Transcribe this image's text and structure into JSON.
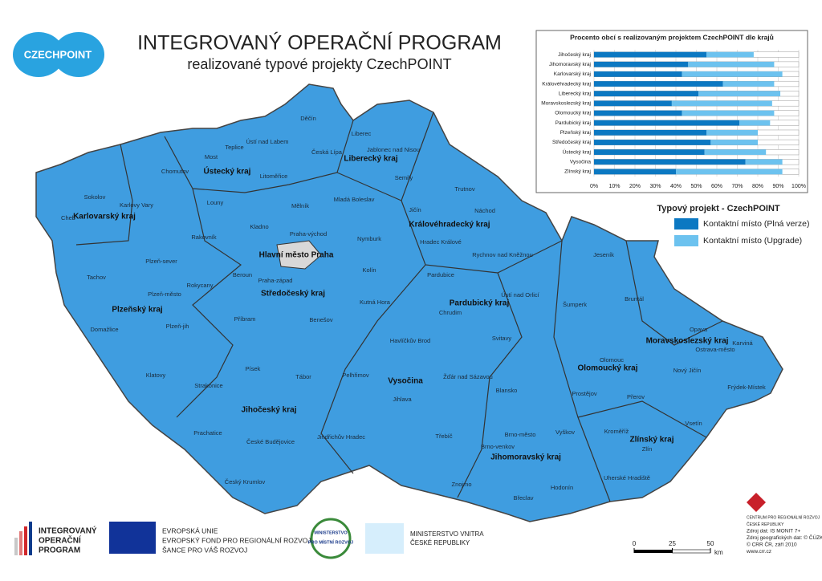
{
  "header": {
    "logo": "CZECHPOINT",
    "title": "INTEGROVANÝ OPERAČNÍ PROGRAM",
    "subtitle": "realizované typové projekty CzechPOINT"
  },
  "chart_data": {
    "type": "bar",
    "orientation": "horizontal",
    "stacked": true,
    "title": "Procento obcí s realizovaným projektem CzechPOINT dle krajů",
    "categories": [
      "Jihočeský kraj",
      "Jihomoravský kraj",
      "Karlovarský kraj",
      "Královéhradecký kraj",
      "Liberecký kraj",
      "Moravskoslezský kraj",
      "Olomoucký kraj",
      "Pardubický kraj",
      "Plzeňský kraj",
      "Středočeský kraj",
      "Ústecký kraj",
      "Vysočina",
      "Zlínský kraj"
    ],
    "series": [
      {
        "name": "Kontaktní místo (Plná verze)",
        "color": "#0b78c2",
        "values": [
          55,
          46,
          43,
          63,
          51,
          38,
          43,
          71,
          55,
          57,
          54,
          74,
          40
        ]
      },
      {
        "name": "Kontaktní místo (Upgrade)",
        "color": "#6cc2ef",
        "values": [
          23,
          42,
          49,
          25,
          40,
          49,
          45,
          15,
          25,
          23,
          30,
          18,
          52
        ]
      }
    ],
    "xlim": [
      0,
      100
    ],
    "xticks": [
      {
        "value": 0,
        "label": "0%"
      },
      {
        "value": 10,
        "label": "10%"
      },
      {
        "value": 20,
        "label": "20%"
      },
      {
        "value": 30,
        "label": "30%"
      },
      {
        "value": 40,
        "label": "40%"
      },
      {
        "value": 50,
        "label": "50%"
      },
      {
        "value": 60,
        "label": "60%"
      },
      {
        "value": 70,
        "label": "70%"
      },
      {
        "value": 80,
        "label": "80%"
      },
      {
        "value": 90,
        "label": "90%"
      },
      {
        "value": 100,
        "label": "100%"
      }
    ]
  },
  "legend": {
    "title": "Typový projekt - CzechPOINT"
  },
  "map": {
    "regions": [
      "Ústecký kraj",
      "Liberecký kraj",
      "Karlovarský kraj",
      "Královéhradecký kraj",
      "Hlavní město Praha",
      "Středočeský kraj",
      "Plzeňský kraj",
      "Pardubický kraj",
      "Vysočina",
      "Jihočeský kraj",
      "Jihomoravský kraj",
      "Olomoucký kraj",
      "Moravskoslezský kraj",
      "Zlínský kraj"
    ],
    "districts": [
      "Děčín",
      "Ústí nad Labem",
      "Liberec",
      "Teplice",
      "Česká Lípa",
      "Jablonec nad Nisou",
      "Most",
      "Semily",
      "Chomutov",
      "Litoměřice",
      "Trutnov",
      "Sokolov",
      "Mladá Boleslav",
      "Karlovy Vary",
      "Mělník",
      "Jičín",
      "Náchod",
      "Louny",
      "Cheb",
      "Kladno",
      "Praha-východ",
      "Rakovník",
      "Nymburk",
      "Hradec Králové",
      "Rychnov nad Kněžnou",
      "Plzeň-sever",
      "Beroun",
      "Praha-západ",
      "Kolín",
      "Tachov",
      "Pardubice",
      "Rokycany",
      "Plzeň-město",
      "Kutná Hora",
      "Ústí nad Orlicí",
      "Jeseník",
      "Bruntál",
      "Šumperk",
      "Chrudim",
      "Příbram",
      "Benešov",
      "Domažlice",
      "Plzeň-jih",
      "Svitavy",
      "Havlíčkův Brod",
      "Opava",
      "Karviná",
      "Ostrava-město",
      "Olomouc",
      "Klatovy",
      "Písek",
      "Pelhřimov",
      "Tábor",
      "Žďár nad Sázavou",
      "Nový Jičín",
      "Strakonice",
      "Frýdek-Místek",
      "Blansko",
      "Prostějov",
      "Jihlava",
      "Přerov",
      "Vsetín",
      "Prachatice",
      "Třebíč",
      "Brno-město",
      "Kroměříž",
      "Vyškov",
      "České Budějovice",
      "Jindřichův Hradec",
      "Brno-venkov",
      "Zlín",
      "Český Krumlov",
      "Uherské Hradiště",
      "Znojmo",
      "Hodonín",
      "Břeclav"
    ]
  },
  "scale": {
    "ticks": [
      0,
      25,
      50
    ],
    "unit": "km"
  },
  "footer": {
    "iop": [
      "INTEGROVANÝ",
      "OPERAČNÍ",
      "PROGRAM"
    ],
    "eu": [
      "EVROPSKÁ UNIE",
      "EVROPSKÝ FOND PRO REGIONÁLNÍ ROZVOJ",
      "ŠANCE PRO VÁŠ ROZVOJ"
    ],
    "mmr": [
      "MINISTERSTVO",
      "PRO MÍSTNÍ ROZVOJ"
    ],
    "mv": [
      "MINISTERSTVO VNITRA",
      "ČESKÉ REPUBLIKY"
    ],
    "credits": [
      "CENTRUM PRO REGIONÁLNÍ ROZVOJ",
      "ČESKÉ REPUBLIKY",
      "Zdroj dat: IS MONIT 7+",
      "Zdroj geografických dat: © ČÚZK",
      "© CRR ČR, září 2010",
      "www.crr.cz"
    ]
  }
}
